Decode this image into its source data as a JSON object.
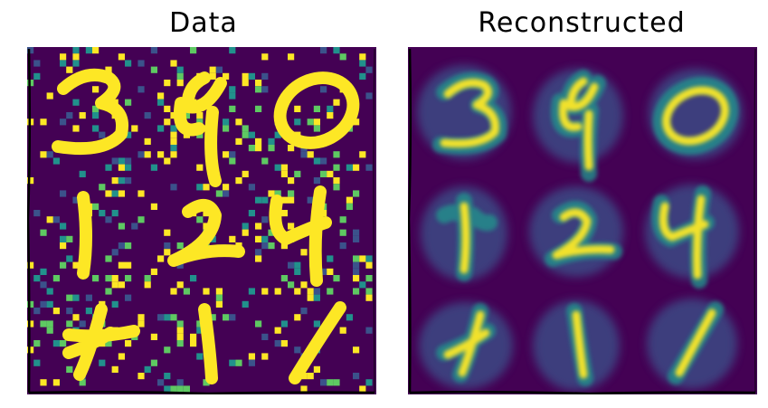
{
  "titles": {
    "left": "Data",
    "right": "Reconstructed"
  },
  "colors": {
    "background": "#440154",
    "low": "#3b528b",
    "mid": "#21918c",
    "high": "#5ec962",
    "peak": "#fde725",
    "frame": "#000000"
  },
  "panels": [
    {
      "name": "data-panel",
      "content": "noisy handwritten digit samples in a 3x3 grid",
      "digits": [
        "3",
        "4",
        "0",
        "1",
        "2",
        "4",
        "4",
        "1",
        "1"
      ]
    },
    {
      "name": "reconstructed-panel",
      "content": "smoothed reconstructions of the same digits in a 3x3 grid",
      "digits": [
        "3",
        "4",
        "0",
        "1",
        "2",
        "4",
        "4",
        "1",
        "1"
      ]
    }
  ]
}
